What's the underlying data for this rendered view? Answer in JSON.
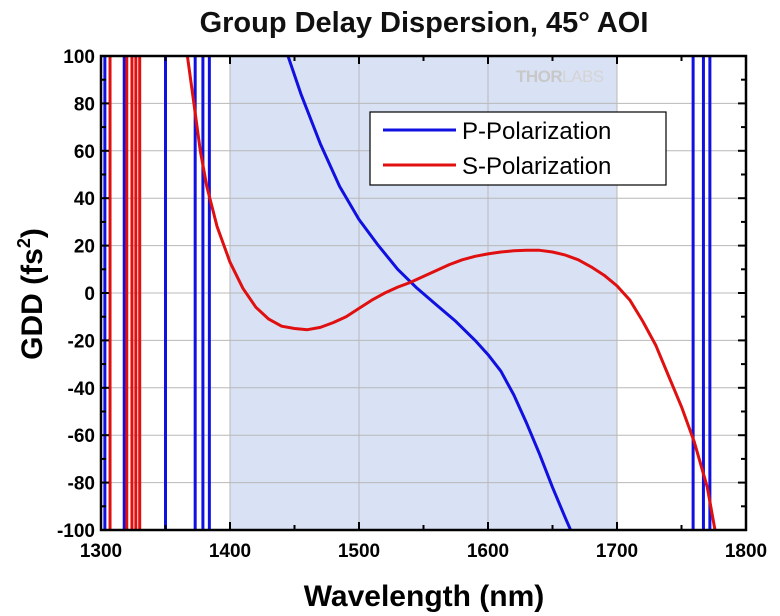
{
  "chart_data": {
    "type": "line",
    "title": "Group Delay Dispersion, 45° AOI",
    "xlabel": "Wavelength (nm)",
    "ylabel": "GDD (fs",
    "ylabel_superscript": "2",
    "ylabel_suffix": ")",
    "xlim": [
      1300,
      1800
    ],
    "ylim": [
      -100,
      100
    ],
    "xticks": [
      1300,
      1400,
      1500,
      1600,
      1700,
      1800
    ],
    "yticks": [
      -100,
      -80,
      -60,
      -40,
      -20,
      0,
      20,
      40,
      60,
      80,
      100
    ],
    "grid": true,
    "legend_position": "top-right",
    "highlight_band": [
      1400,
      1700
    ],
    "colors": {
      "p_polarization": "#1010e0",
      "s_polarization": "#e01010",
      "band": "#d9e2f4",
      "grid": "#b8b8b8"
    },
    "series": [
      {
        "name": "P-Polarization",
        "color": "#1010e0",
        "points": [
          [
            1445,
            100
          ],
          [
            1455,
            84
          ],
          [
            1470,
            63
          ],
          [
            1485,
            45
          ],
          [
            1500,
            31
          ],
          [
            1515,
            20
          ],
          [
            1530,
            10
          ],
          [
            1545,
            2
          ],
          [
            1560,
            -5
          ],
          [
            1575,
            -12
          ],
          [
            1590,
            -20
          ],
          [
            1600,
            -26
          ],
          [
            1610,
            -33
          ],
          [
            1620,
            -43
          ],
          [
            1630,
            -55
          ],
          [
            1640,
            -68
          ],
          [
            1650,
            -82
          ],
          [
            1660,
            -95
          ],
          [
            1664,
            -100
          ]
        ],
        "resonances": [
          1303,
          1318,
          1350,
          1373,
          1379,
          1384,
          1759,
          1767,
          1772
        ]
      },
      {
        "name": "S-Polarization",
        "color": "#e01010",
        "points": [
          [
            1367,
            100
          ],
          [
            1372,
            80
          ],
          [
            1377,
            60
          ],
          [
            1382,
            45
          ],
          [
            1390,
            28
          ],
          [
            1400,
            13
          ],
          [
            1410,
            2
          ],
          [
            1420,
            -6
          ],
          [
            1430,
            -11
          ],
          [
            1440,
            -14
          ],
          [
            1450,
            -15
          ],
          [
            1460,
            -15.5
          ],
          [
            1470,
            -14.5
          ],
          [
            1480,
            -12.5
          ],
          [
            1490,
            -10
          ],
          [
            1500,
            -6.5
          ],
          [
            1510,
            -3
          ],
          [
            1520,
            0
          ],
          [
            1530,
            2.5
          ],
          [
            1540,
            4.5
          ],
          [
            1550,
            7
          ],
          [
            1560,
            9.5
          ],
          [
            1570,
            12
          ],
          [
            1580,
            14
          ],
          [
            1590,
            15.5
          ],
          [
            1600,
            16.5
          ],
          [
            1610,
            17.3
          ],
          [
            1620,
            17.8
          ],
          [
            1630,
            18
          ],
          [
            1640,
            18
          ],
          [
            1650,
            17.3
          ],
          [
            1660,
            16
          ],
          [
            1670,
            14
          ],
          [
            1680,
            11
          ],
          [
            1690,
            7.5
          ],
          [
            1700,
            3
          ],
          [
            1710,
            -3
          ],
          [
            1720,
            -12
          ],
          [
            1730,
            -22
          ],
          [
            1740,
            -35
          ],
          [
            1750,
            -48
          ],
          [
            1760,
            -63
          ],
          [
            1770,
            -82
          ],
          [
            1776,
            -100
          ]
        ],
        "resonances": [
          1307,
          1320,
          1324,
          1327,
          1330
        ]
      }
    ]
  },
  "watermark": {
    "text_left": "THOR",
    "text_right": "LABS"
  }
}
